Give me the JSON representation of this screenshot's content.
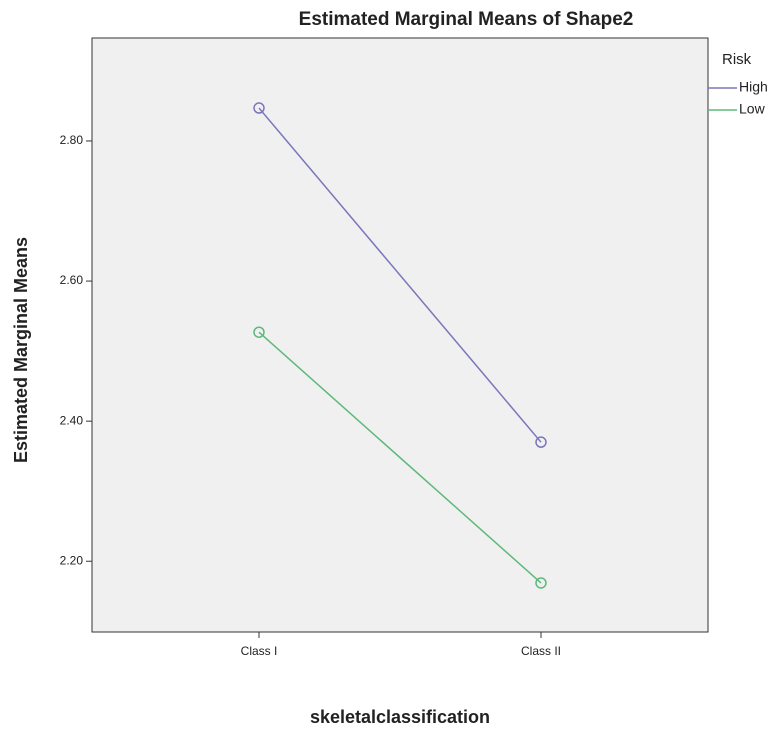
{
  "chart_data": {
    "type": "line",
    "title": "Estimated Marginal Means of Shape2",
    "x_label": "skeletalclassification",
    "y_label": "Estimated Marginal Means",
    "categories": [
      "Class I",
      "Class II"
    ],
    "series": [
      {
        "name": "High",
        "color": "#7a76bb",
        "values": [
          2.847,
          2.37
        ]
      },
      {
        "name": "Low",
        "color": "#5db97a",
        "values": [
          2.527,
          2.169
        ]
      }
    ],
    "legend_title": "Risk",
    "legend": "right",
    "ylim": [
      2.099,
      2.947
    ],
    "yticks": [
      {
        "value": 2.2,
        "label": "2.20"
      },
      {
        "value": 2.4,
        "label": "2.40"
      },
      {
        "value": 2.6,
        "label": "2.60"
      },
      {
        "value": 2.8,
        "label": "2.80"
      }
    ]
  }
}
